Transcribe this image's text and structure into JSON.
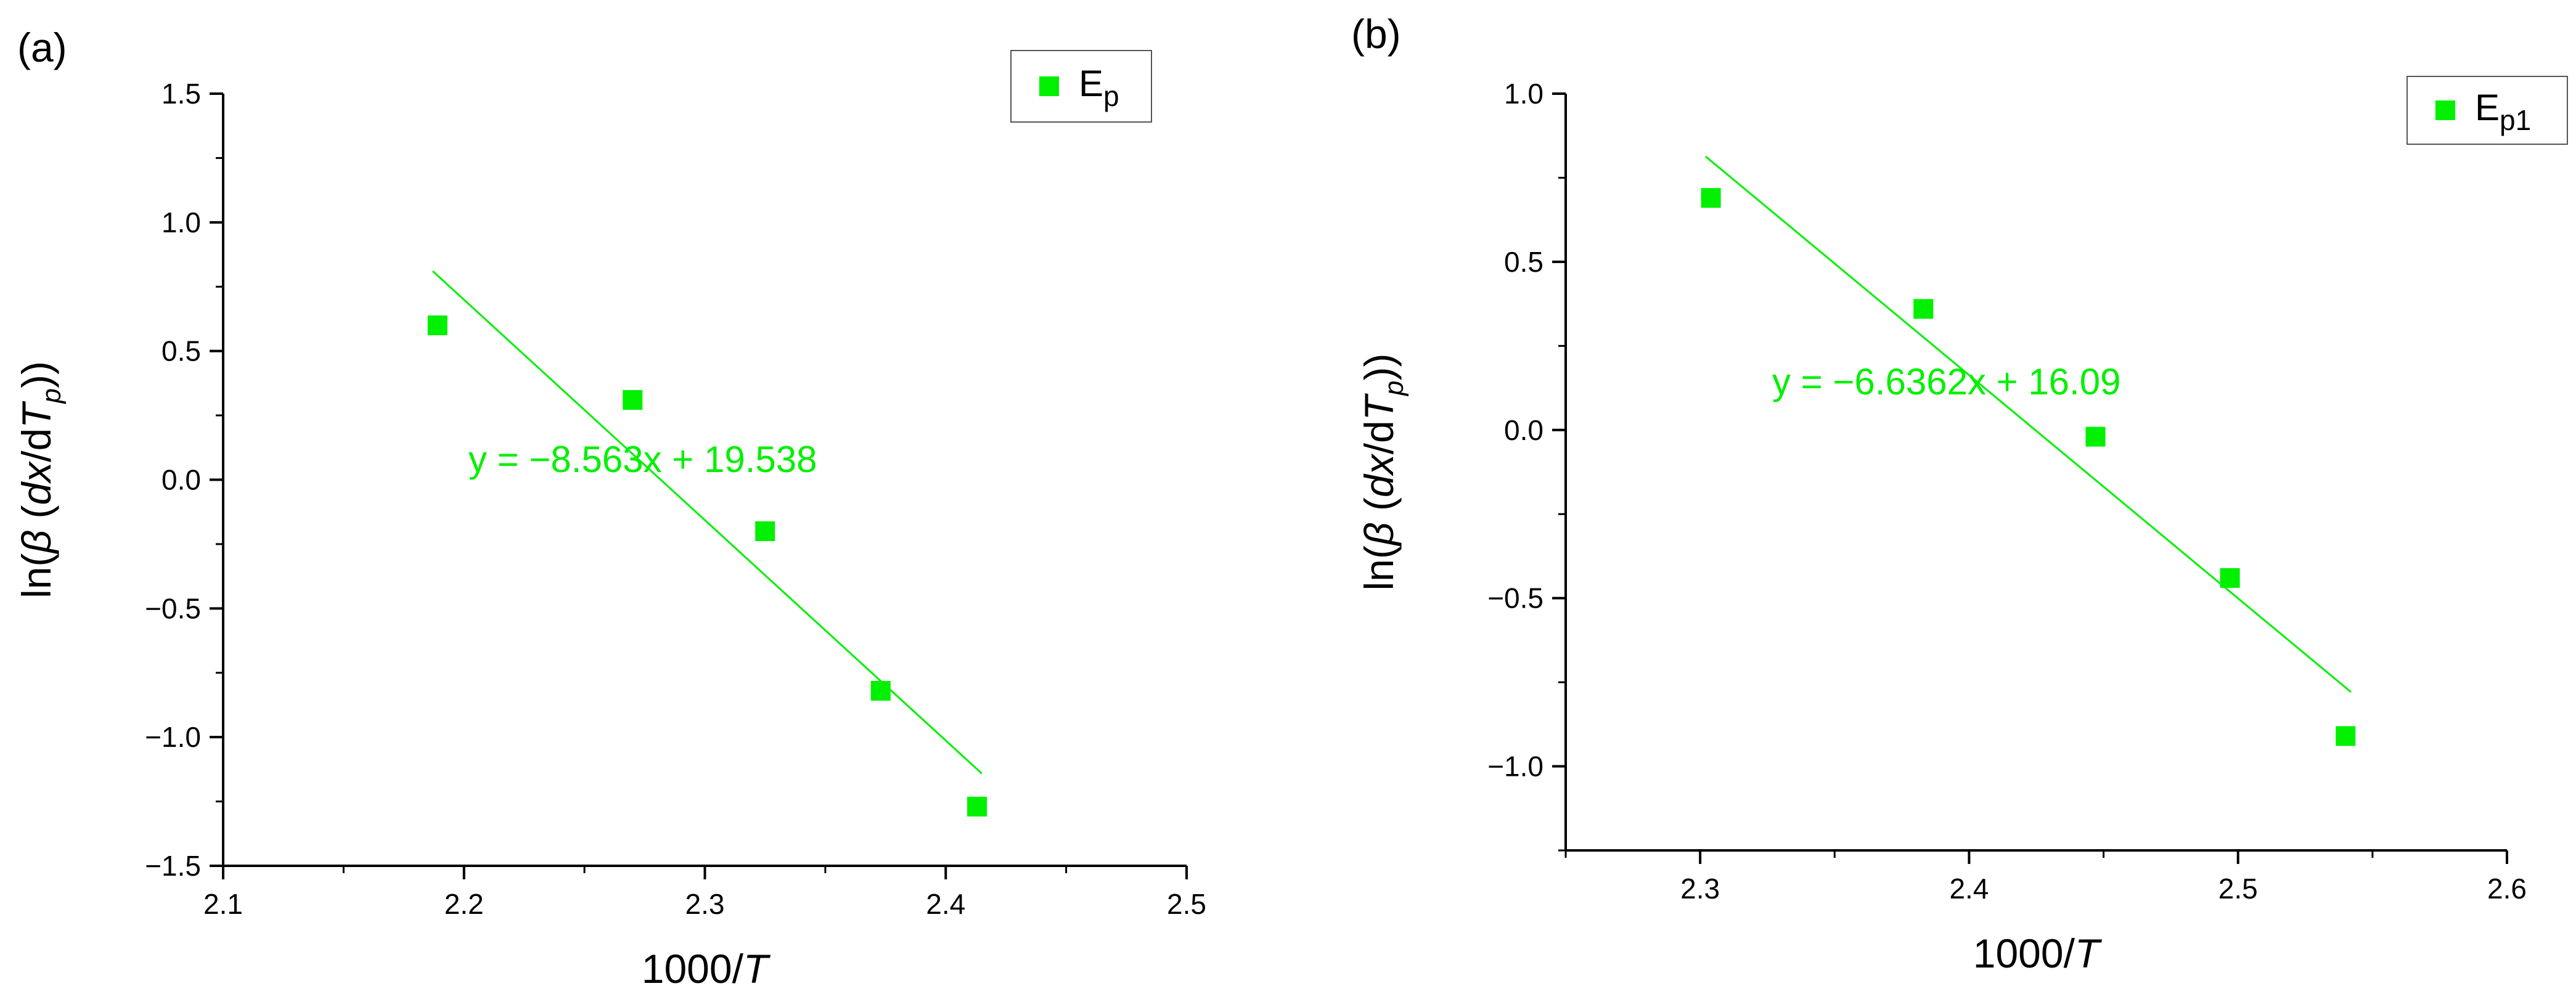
{
  "chart_data": [
    {
      "panel_label": "(a)",
      "type": "scatter",
      "xlabel": "1000/T",
      "xlabel_parts": [
        "1000/",
        "T"
      ],
      "ylabel": "ln(β (dx/dTp))",
      "ylabel_parts": [
        "ln(",
        "β",
        " (",
        "dx",
        "/d",
        "T",
        "p",
        "))"
      ],
      "xlim": [
        2.1,
        2.5
      ],
      "ylim": [
        -1.5,
        1.5
      ],
      "xticks": [
        2.1,
        2.2,
        2.3,
        2.4,
        2.5
      ],
      "xtick_labels": [
        "2.1",
        "2.2",
        "2.3",
        "2.4",
        "2.5"
      ],
      "yticks": [
        -1.5,
        -1.0,
        -0.5,
        0.0,
        0.5,
        1.0,
        1.5
      ],
      "ytick_labels": [
        "−1.5",
        "−1.0",
        "−0.5",
        "0.0",
        "0.5",
        "1.0",
        "1.5"
      ],
      "series": [
        {
          "name": "Ep",
          "name_parts": [
            "E",
            "p"
          ],
          "color": "#00f000",
          "marker": "square",
          "x": [
            2.189,
            2.27,
            2.325,
            2.373,
            2.413
          ],
          "y": [
            0.6,
            0.31,
            -0.2,
            -0.82,
            -1.27
          ]
        }
      ],
      "fit": {
        "slope": -8.563,
        "intercept": 19.538,
        "x_range": [
          2.187,
          2.415
        ],
        "equation": "y = −8.563x + 19.538",
        "color": "#00f000"
      },
      "legend_position": "top-right",
      "grid": false
    },
    {
      "panel_label": "(b)",
      "type": "scatter",
      "xlabel": "1000/T",
      "xlabel_parts": [
        "1000/",
        "T"
      ],
      "ylabel": "ln(β (dx/dTp))",
      "ylabel_parts": [
        "ln(",
        "β",
        " (",
        "dx",
        "/d",
        "T",
        "p",
        "))"
      ],
      "xlim": [
        2.25,
        2.6
      ],
      "ylim": [
        -1.25,
        1.0
      ],
      "xticks": [
        2.3,
        2.4,
        2.5,
        2.6
      ],
      "xtick_labels": [
        "2.3",
        "2.4",
        "2.5",
        "2.6"
      ],
      "yticks": [
        -1.0,
        -0.5,
        0.0,
        0.5,
        1.0
      ],
      "ytick_labels": [
        "−1.0",
        "−0.5",
        "0.0",
        "0.5",
        "1.0"
      ],
      "series": [
        {
          "name": "Ep1",
          "name_parts": [
            "E",
            "p1"
          ],
          "color": "#00f000",
          "marker": "square",
          "x": [
            2.304,
            2.383,
            2.447,
            2.497,
            2.54
          ],
          "y": [
            0.69,
            0.36,
            -0.02,
            -0.44,
            -0.91
          ]
        }
      ],
      "fit": {
        "slope": -6.6362,
        "intercept": 16.09,
        "x_range": [
          2.302,
          2.542
        ],
        "equation": "y = −6.6362x + 16.09",
        "color": "#00f000"
      },
      "legend_position": "top-right",
      "grid": false
    }
  ]
}
